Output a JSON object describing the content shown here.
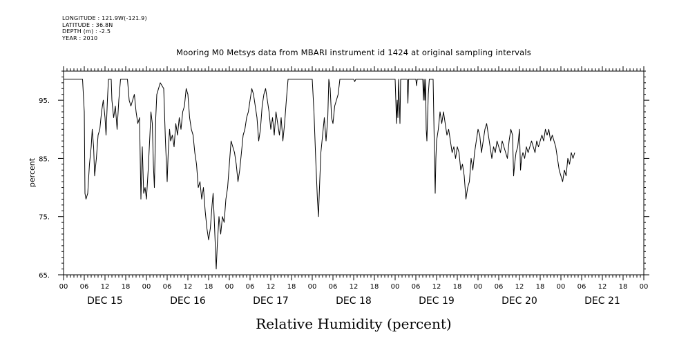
{
  "header": {
    "longitude": "LONGITUDE : 121.9W(-121.9)",
    "latitude": "LATITUDE : 36.8N",
    "depth": "DEPTH (m) : -2.5",
    "year": "YEAR : 2010"
  },
  "chart_data": {
    "type": "line",
    "title": "Mooring M0 Metsys data from MBARI instrument id 1424 at original sampling intervals",
    "xlabel": "Relative Humidity (percent)",
    "ylabel": "percent",
    "ylim": [
      65,
      100
    ],
    "yticks": [
      65,
      75,
      85,
      95
    ],
    "ytick_labels": [
      "65.",
      "75.",
      "85.",
      "95."
    ],
    "xlim_hours": [
      0,
      168
    ],
    "x_hour_ticks": [
      "00",
      "06",
      "12",
      "18",
      "00",
      "06",
      "12",
      "18",
      "00",
      "06",
      "12",
      "18",
      "00",
      "06",
      "12",
      "18",
      "00",
      "06",
      "12",
      "18",
      "00",
      "06",
      "12",
      "18",
      "00",
      "06",
      "12",
      "18",
      "00"
    ],
    "day_labels": [
      "DEC 15",
      "DEC 16",
      "DEC 17",
      "DEC 18",
      "DEC 19",
      "DEC 20",
      "DEC 21"
    ],
    "grid": false,
    "series": [
      {
        "color": "#000000",
        "points": [
          [
            0,
            98.6
          ],
          [
            5.5,
            98.6
          ],
          [
            6,
            93
          ],
          [
            6.2,
            79
          ],
          [
            6.5,
            78
          ],
          [
            7,
            79
          ],
          [
            7.5,
            84
          ],
          [
            8,
            87
          ],
          [
            8.3,
            90
          ],
          [
            8.7,
            87
          ],
          [
            9,
            82
          ],
          [
            9.5,
            85
          ],
          [
            10,
            89
          ],
          [
            10.5,
            90
          ],
          [
            11,
            93
          ],
          [
            11.5,
            95
          ],
          [
            12,
            92
          ],
          [
            12.3,
            89
          ],
          [
            12.7,
            95
          ],
          [
            13,
            98.6
          ],
          [
            13.8,
            98.6
          ],
          [
            14,
            95
          ],
          [
            14.5,
            92
          ],
          [
            15,
            94
          ],
          [
            15.5,
            90
          ],
          [
            16,
            95
          ],
          [
            16.5,
            98.6
          ],
          [
            18.5,
            98.6
          ],
          [
            19,
            95
          ],
          [
            19.5,
            94
          ],
          [
            20,
            95
          ],
          [
            20.5,
            96
          ],
          [
            21,
            93
          ],
          [
            21.5,
            91
          ],
          [
            22,
            92
          ],
          [
            22.4,
            78
          ],
          [
            22.8,
            87
          ],
          [
            23.2,
            79
          ],
          [
            23.6,
            80
          ],
          [
            24,
            78
          ],
          [
            24.5,
            83
          ],
          [
            25,
            89
          ],
          [
            25.3,
            93
          ],
          [
            25.7,
            91
          ],
          [
            26,
            84
          ],
          [
            26.3,
            80
          ],
          [
            26.7,
            92
          ],
          [
            27,
            96
          ],
          [
            27.5,
            97
          ],
          [
            28,
            98
          ],
          [
            29,
            97
          ],
          [
            29.5,
            88
          ],
          [
            30,
            81
          ],
          [
            30.3,
            86
          ],
          [
            30.7,
            90
          ],
          [
            31,
            88
          ],
          [
            31.5,
            89
          ],
          [
            32,
            87
          ],
          [
            32.5,
            91
          ],
          [
            33,
            89
          ],
          [
            33.5,
            92
          ],
          [
            34,
            90
          ],
          [
            34.5,
            93
          ],
          [
            35,
            94
          ],
          [
            35.5,
            97
          ],
          [
            36,
            96
          ],
          [
            36.5,
            92
          ],
          [
            37,
            90
          ],
          [
            37.5,
            89
          ],
          [
            38,
            86
          ],
          [
            38.5,
            84
          ],
          [
            39,
            80
          ],
          [
            39.5,
            81
          ],
          [
            40,
            78
          ],
          [
            40.5,
            80
          ],
          [
            41,
            76
          ],
          [
            41.5,
            73
          ],
          [
            42,
            71
          ],
          [
            42.5,
            73
          ],
          [
            43,
            77
          ],
          [
            43.3,
            79
          ],
          [
            43.6,
            75
          ],
          [
            44,
            69
          ],
          [
            44.2,
            66
          ],
          [
            44.5,
            70
          ],
          [
            45,
            75
          ],
          [
            45.5,
            72
          ],
          [
            46,
            75
          ],
          [
            46.5,
            74
          ],
          [
            47,
            78
          ],
          [
            47.5,
            80
          ],
          [
            48,
            84
          ],
          [
            48.5,
            88
          ],
          [
            49,
            87
          ],
          [
            49.5,
            86
          ],
          [
            50,
            84
          ],
          [
            50.5,
            81
          ],
          [
            51,
            83
          ],
          [
            51.5,
            86
          ],
          [
            52,
            89
          ],
          [
            52.5,
            90
          ],
          [
            53,
            92
          ],
          [
            53.5,
            93
          ],
          [
            54,
            95
          ],
          [
            54.5,
            97
          ],
          [
            55,
            96
          ],
          [
            55.5,
            94
          ],
          [
            56,
            92
          ],
          [
            56.5,
            88
          ],
          [
            57,
            90
          ],
          [
            57.5,
            94
          ],
          [
            58,
            96
          ],
          [
            58.5,
            97
          ],
          [
            59,
            95
          ],
          [
            59.5,
            93
          ],
          [
            60,
            90
          ],
          [
            60.5,
            92
          ],
          [
            61,
            89
          ],
          [
            61.5,
            93
          ],
          [
            62,
            91
          ],
          [
            62.5,
            89
          ],
          [
            63,
            92
          ],
          [
            63.5,
            88
          ],
          [
            64,
            91
          ],
          [
            64.5,
            95
          ],
          [
            65,
            98.6
          ],
          [
            72,
            98.6
          ],
          [
            72.5,
            93
          ],
          [
            73,
            85
          ],
          [
            73.5,
            78
          ],
          [
            73.8,
            75
          ],
          [
            74.1,
            80
          ],
          [
            74.5,
            86
          ],
          [
            75,
            89
          ],
          [
            75.5,
            92
          ],
          [
            76,
            88
          ],
          [
            76.5,
            92
          ],
          [
            76.8,
            98.6
          ],
          [
            77.2,
            97
          ],
          [
            77.6,
            92
          ],
          [
            78,
            91
          ],
          [
            78.5,
            94
          ],
          [
            79,
            95
          ],
          [
            79.5,
            96
          ],
          [
            80,
            98.6
          ],
          [
            84,
            98.6
          ],
          [
            84.3,
            98.2
          ],
          [
            84.6,
            98.6
          ],
          [
            96,
            98.6
          ],
          [
            96.2,
            95
          ],
          [
            96.4,
            91
          ],
          [
            96.6,
            95
          ],
          [
            96.8,
            92
          ],
          [
            97,
            98.6
          ],
          [
            97.2,
            95
          ],
          [
            97.4,
            91
          ],
          [
            97.6,
            98.6
          ],
          [
            98.5,
            98.6
          ],
          [
            99.5,
            98.6
          ],
          [
            99.7,
            94.5
          ],
          [
            99.9,
            98.6
          ],
          [
            102,
            98.6
          ],
          [
            102.2,
            97.5
          ],
          [
            102.4,
            98.6
          ],
          [
            104,
            98.6
          ],
          [
            104.2,
            95
          ],
          [
            104.4,
            98.6
          ],
          [
            104.6,
            95
          ],
          [
            104.8,
            98.6
          ],
          [
            105,
            90
          ],
          [
            105.2,
            88
          ],
          [
            105.6,
            96
          ],
          [
            105.9,
            98.6
          ],
          [
            107,
            98.6
          ],
          [
            107.2,
            92
          ],
          [
            107.4,
            85
          ],
          [
            107.6,
            79
          ],
          [
            107.8,
            85
          ],
          [
            108,
            88
          ],
          [
            108.5,
            90
          ],
          [
            109,
            93
          ],
          [
            109.5,
            91
          ],
          [
            110,
            93
          ],
          [
            110.5,
            91
          ],
          [
            111,
            89
          ],
          [
            111.5,
            90
          ],
          [
            112,
            88
          ],
          [
            112.5,
            86
          ],
          [
            113,
            87
          ],
          [
            113.5,
            85
          ],
          [
            114,
            87
          ],
          [
            114.5,
            86
          ],
          [
            115,
            83
          ],
          [
            115.5,
            84
          ],
          [
            116,
            82
          ],
          [
            116.5,
            78
          ],
          [
            117,
            80
          ],
          [
            117.5,
            81
          ],
          [
            118,
            85
          ],
          [
            118.5,
            83
          ],
          [
            119,
            86
          ],
          [
            119.5,
            88
          ],
          [
            120,
            90
          ],
          [
            120.5,
            89
          ],
          [
            121,
            86
          ],
          [
            121.5,
            88
          ],
          [
            122,
            90
          ],
          [
            122.5,
            91
          ],
          [
            123,
            89
          ],
          [
            123.5,
            87
          ],
          [
            124,
            85
          ],
          [
            124.5,
            87
          ],
          [
            125,
            86
          ],
          [
            125.5,
            88
          ],
          [
            126,
            87
          ],
          [
            126.5,
            86
          ],
          [
            127,
            88
          ],
          [
            127.5,
            87
          ],
          [
            128,
            86
          ],
          [
            128.5,
            85
          ],
          [
            129,
            88
          ],
          [
            129.5,
            90
          ],
          [
            130,
            89
          ],
          [
            130.3,
            82
          ],
          [
            130.6,
            84
          ],
          [
            131,
            86
          ],
          [
            131.5,
            87
          ],
          [
            132,
            90
          ],
          [
            132.3,
            83
          ],
          [
            132.6,
            85
          ],
          [
            133,
            86
          ],
          [
            133.5,
            85
          ],
          [
            134,
            87
          ],
          [
            134.5,
            86
          ],
          [
            135,
            87
          ],
          [
            135.5,
            88
          ],
          [
            136,
            87
          ],
          [
            136.5,
            86
          ],
          [
            137,
            88
          ],
          [
            137.5,
            87
          ],
          [
            138,
            88
          ],
          [
            138.5,
            89
          ],
          [
            139,
            88
          ],
          [
            139.5,
            90
          ],
          [
            140,
            89
          ],
          [
            140.5,
            90
          ],
          [
            141,
            88
          ],
          [
            141.5,
            89
          ],
          [
            142,
            88
          ],
          [
            142.5,
            87
          ],
          [
            143,
            85
          ],
          [
            143.5,
            83
          ],
          [
            144,
            82
          ],
          [
            144.5,
            81
          ],
          [
            145,
            83
          ],
          [
            145.5,
            82
          ],
          [
            146,
            85
          ],
          [
            146.5,
            84
          ],
          [
            147,
            86
          ],
          [
            147.5,
            85
          ],
          [
            148,
            86
          ]
        ]
      }
    ]
  }
}
